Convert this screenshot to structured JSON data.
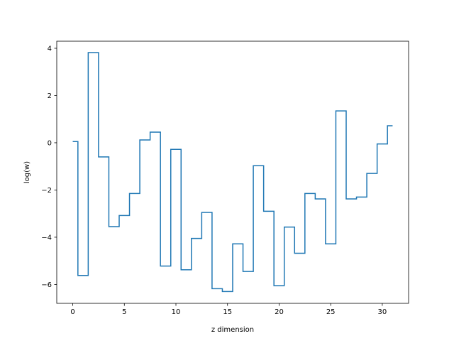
{
  "chart_data": {
    "type": "line",
    "drawstyle": "steps-mid",
    "xlabel": "z dimension",
    "ylabel": "log(w)",
    "xlim": [
      -1.55,
      32.55
    ],
    "ylim": [
      -6.8,
      4.3
    ],
    "xticks": [
      0,
      5,
      10,
      15,
      20,
      25,
      30
    ],
    "yticks": [
      -6,
      -4,
      -2,
      0,
      2,
      4
    ],
    "grid": false,
    "line_color": "#1f77b4",
    "series": [
      {
        "x": [
          0,
          1,
          2,
          3,
          4,
          5,
          6,
          7,
          8,
          9,
          10,
          11,
          12,
          13,
          14,
          15,
          16,
          17,
          18,
          19,
          20,
          21,
          22,
          23,
          24,
          25,
          26,
          27,
          28,
          29,
          30,
          31
        ],
        "values": [
          0.05,
          -5.62,
          3.82,
          -0.6,
          -3.55,
          -3.08,
          -2.15,
          0.12,
          0.45,
          -5.22,
          -0.28,
          -5.38,
          -4.05,
          -2.95,
          -6.18,
          -6.3,
          -4.28,
          -5.45,
          -0.97,
          -2.9,
          -6.05,
          -3.57,
          -4.68,
          -2.15,
          -2.38,
          -4.28,
          1.35,
          -2.38,
          -2.3,
          -1.3,
          -0.05,
          0.72
        ]
      }
    ]
  }
}
